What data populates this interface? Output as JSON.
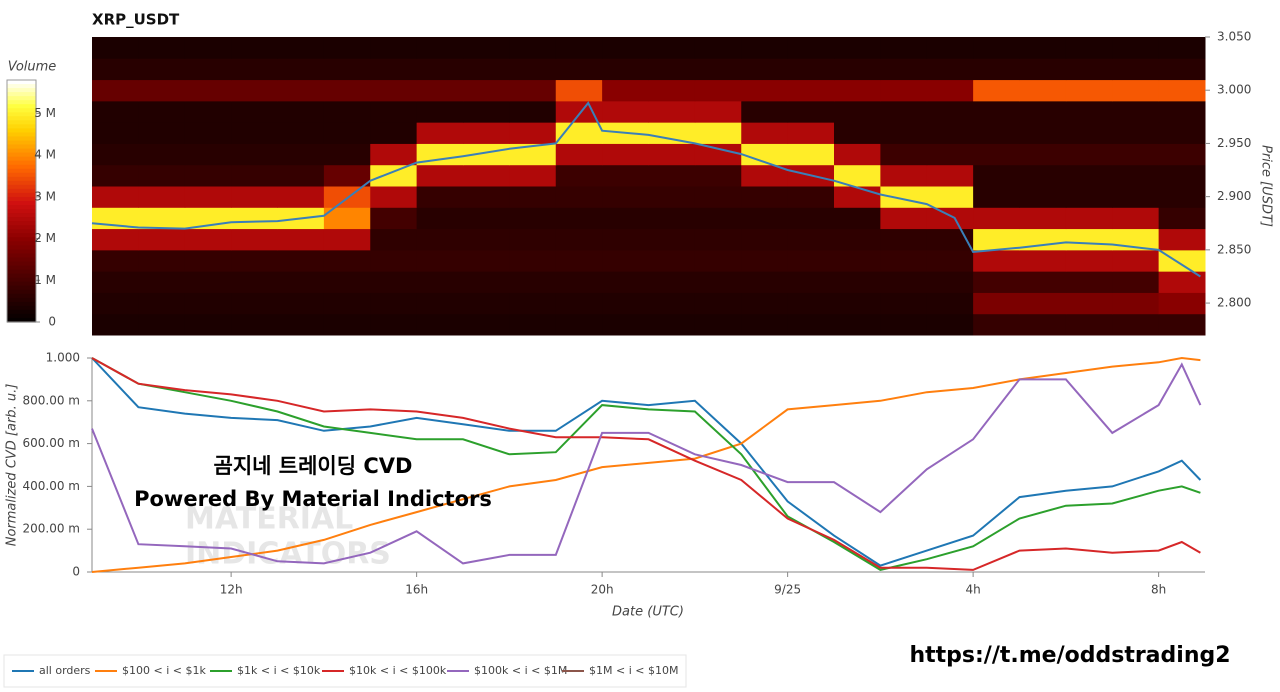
{
  "chart_data": [
    {
      "type": "heatmap",
      "title": "XRP_USDT",
      "ylabel": "Price [USDT]",
      "xlim": [
        9,
        33
      ],
      "ylim": [
        2.77,
        3.05
      ],
      "yticks": [
        {
          "value": 2.8,
          "label": "2.800"
        },
        {
          "value": 2.85,
          "label": "2.850"
        },
        {
          "value": 2.9,
          "label": "2.900"
        },
        {
          "value": 2.95,
          "label": "2.950"
        },
        {
          "value": 3.0,
          "label": "3.000"
        },
        {
          "value": 3.05,
          "label": "3.050"
        }
      ],
      "x_edges": [
        9,
        10,
        11,
        12,
        13,
        14,
        15,
        16,
        17,
        18,
        19,
        20,
        21,
        22,
        23,
        24,
        25,
        26,
        27,
        28,
        29,
        30,
        31,
        32,
        33
      ],
      "price_edges": [
        2.77,
        2.79,
        2.81,
        2.83,
        2.85,
        2.87,
        2.89,
        2.91,
        2.93,
        2.95,
        2.97,
        2.99,
        3.01,
        3.03,
        3.05
      ],
      "z": [
        [
          0.4,
          0.4,
          0.4,
          0.4,
          0.4,
          0.4,
          0.4,
          0.4,
          0.4,
          0.4,
          0.4,
          0.4,
          0.4,
          0.4,
          0.4,
          0.4,
          0.4,
          0.4,
          0.4,
          0.8,
          0.8,
          0.8,
          0.8,
          0.8
        ],
        [
          0.5,
          0.5,
          0.5,
          0.5,
          0.5,
          0.5,
          0.5,
          0.5,
          0.5,
          0.5,
          0.5,
          0.5,
          0.5,
          0.5,
          0.5,
          0.5,
          0.5,
          0.5,
          0.5,
          1.8,
          1.8,
          1.8,
          1.8,
          2.0
        ],
        [
          0.6,
          0.6,
          0.6,
          0.6,
          0.6,
          0.6,
          0.6,
          0.6,
          0.6,
          0.6,
          0.6,
          0.6,
          0.6,
          0.6,
          0.6,
          0.6,
          0.6,
          0.6,
          0.6,
          1.0,
          1.0,
          1.0,
          1.0,
          2.5
        ],
        [
          0.8,
          0.8,
          0.8,
          0.8,
          0.8,
          0.8,
          0.8,
          0.8,
          0.8,
          0.8,
          0.8,
          0.8,
          0.8,
          0.8,
          0.8,
          0.8,
          0.8,
          0.8,
          0.8,
          2.5,
          2.5,
          2.5,
          2.5,
          5.0
        ],
        [
          2.5,
          2.5,
          2.5,
          2.5,
          2.5,
          2.5,
          0.7,
          0.7,
          0.7,
          0.7,
          0.7,
          0.7,
          0.7,
          0.7,
          0.7,
          0.7,
          0.7,
          0.7,
          0.7,
          5.0,
          5.0,
          5.0,
          5.0,
          2.5
        ],
        [
          5.0,
          5.0,
          5.0,
          5.0,
          5.0,
          4.0,
          1.0,
          0.6,
          0.6,
          0.6,
          0.6,
          0.6,
          0.6,
          0.6,
          0.6,
          0.6,
          0.6,
          2.5,
          2.5,
          2.5,
          2.5,
          2.5,
          2.5,
          0.8
        ],
        [
          2.5,
          2.5,
          2.5,
          2.5,
          2.5,
          3.5,
          2.5,
          0.8,
          0.8,
          0.8,
          0.8,
          0.8,
          0.8,
          0.8,
          0.8,
          0.8,
          2.5,
          5.0,
          5.0,
          0.6,
          0.6,
          0.6,
          0.6,
          0.6
        ],
        [
          0.8,
          0.8,
          0.8,
          0.8,
          0.8,
          1.5,
          5.0,
          2.5,
          2.5,
          2.5,
          0.9,
          0.9,
          0.9,
          0.9,
          2.5,
          2.5,
          5.0,
          2.5,
          2.5,
          0.6,
          0.6,
          0.6,
          0.6,
          0.6
        ],
        [
          0.6,
          0.6,
          0.6,
          0.6,
          0.6,
          0.6,
          2.5,
          5.0,
          5.0,
          5.0,
          2.5,
          2.5,
          2.5,
          2.5,
          5.0,
          5.0,
          2.5,
          0.9,
          0.9,
          0.9,
          0.9,
          0.9,
          0.9,
          0.9
        ],
        [
          0.5,
          0.5,
          0.5,
          0.5,
          0.5,
          0.5,
          0.5,
          2.5,
          2.5,
          2.5,
          5.0,
          5.0,
          5.0,
          5.0,
          2.5,
          2.5,
          0.6,
          0.6,
          0.6,
          0.6,
          0.6,
          0.6,
          0.6,
          0.6
        ],
        [
          0.5,
          0.5,
          0.5,
          0.5,
          0.5,
          0.5,
          0.5,
          0.5,
          0.5,
          0.5,
          2.5,
          2.5,
          2.5,
          2.5,
          0.6,
          0.6,
          0.6,
          0.6,
          0.6,
          0.6,
          0.6,
          0.6,
          0.6,
          0.6
        ],
        [
          1.5,
          1.5,
          1.5,
          1.5,
          1.5,
          1.5,
          1.5,
          1.5,
          1.5,
          1.5,
          3.5,
          2.0,
          2.0,
          2.0,
          2.0,
          2.0,
          2.0,
          2.0,
          2.0,
          3.6,
          3.6,
          3.6,
          3.6,
          3.6
        ],
        [
          0.6,
          0.6,
          0.6,
          0.6,
          0.6,
          0.6,
          0.6,
          0.6,
          0.6,
          0.6,
          0.6,
          0.6,
          0.6,
          0.6,
          0.6,
          0.6,
          0.6,
          0.6,
          0.6,
          0.6,
          0.6,
          0.6,
          0.6,
          0.6
        ],
        [
          0.4,
          0.4,
          0.4,
          0.4,
          0.4,
          0.4,
          0.4,
          0.4,
          0.4,
          0.4,
          0.4,
          0.4,
          0.4,
          0.4,
          0.4,
          0.4,
          0.4,
          0.4,
          0.4,
          0.4,
          0.4,
          0.4,
          0.4,
          0.4
        ]
      ],
      "colorbar": {
        "title": "Volume",
        "zlim": [
          0,
          5.8
        ],
        "ticks": [
          0,
          {
            "value": 1,
            "label": "1 M"
          },
          {
            "value": 2,
            "label": "2 M"
          },
          {
            "value": 3,
            "label": "3 M"
          },
          {
            "value": 4,
            "label": "4 M"
          },
          {
            "value": 5,
            "label": "5 M"
          }
        ]
      },
      "price_line": {
        "color": "#3a7fb8",
        "x": [
          9,
          10,
          11,
          12,
          13,
          14,
          15,
          16,
          17,
          18,
          19,
          19.7,
          20,
          21,
          22,
          23,
          24,
          25,
          26,
          27,
          27.6,
          28,
          29,
          30,
          31,
          32,
          32.9
        ],
        "values": [
          2.875,
          2.871,
          2.87,
          2.876,
          2.877,
          2.882,
          2.915,
          2.932,
          2.938,
          2.945,
          2.95,
          2.988,
          2.962,
          2.958,
          2.95,
          2.94,
          2.925,
          2.915,
          2.902,
          2.893,
          2.88,
          2.848,
          2.852,
          2.857,
          2.855,
          2.85,
          2.825
        ]
      }
    },
    {
      "type": "line",
      "ylabel": "Normalized CVD [arb. u.]",
      "xlabel": "Date (UTC)",
      "xlim": [
        9,
        33
      ],
      "ylim": [
        0,
        1
      ],
      "xticks": [
        {
          "value": 12,
          "label": "12h"
        },
        {
          "value": 16,
          "label": "16h"
        },
        {
          "value": 20,
          "label": "20h"
        },
        {
          "value": 24,
          "label": "9/25"
        },
        {
          "value": 28,
          "label": "4h"
        },
        {
          "value": 32,
          "label": "8h"
        }
      ],
      "yticks": [
        0,
        {
          "value": 0.2,
          "label": "200.00 m"
        },
        {
          "value": 0.4,
          "label": "400.00 m"
        },
        {
          "value": 0.6,
          "label": "600.00 m"
        },
        {
          "value": 0.8,
          "label": "800.00 m"
        },
        {
          "value": 1,
          "label": "1.000"
        }
      ],
      "legend": "bottom-left",
      "x": [
        9,
        10,
        11,
        12,
        13,
        14,
        15,
        16,
        17,
        18,
        19,
        20,
        21,
        22,
        23,
        24,
        25,
        26,
        27,
        28,
        29,
        30,
        31,
        32,
        32.5,
        32.9
      ],
      "series": [
        {
          "name": "all orders",
          "color": "#1f77b4",
          "values": [
            1.0,
            0.77,
            0.74,
            0.72,
            0.71,
            0.66,
            0.68,
            0.72,
            0.69,
            0.66,
            0.66,
            0.8,
            0.78,
            0.8,
            0.6,
            0.33,
            0.17,
            0.03,
            0.1,
            0.17,
            0.35,
            0.38,
            0.4,
            0.47,
            0.52,
            0.43
          ]
        },
        {
          "name": "$100 < i < $1k",
          "color": "#ff7f0e",
          "values": [
            0.0,
            0.02,
            0.04,
            0.07,
            0.1,
            0.15,
            0.22,
            0.28,
            0.34,
            0.4,
            0.43,
            0.49,
            0.51,
            0.53,
            0.6,
            0.76,
            0.78,
            0.8,
            0.84,
            0.86,
            0.9,
            0.93,
            0.96,
            0.98,
            1.0,
            0.99
          ]
        },
        {
          "name": "$1k < i < $10k",
          "color": "#2ca02c",
          "values": [
            1.0,
            0.88,
            0.84,
            0.8,
            0.75,
            0.68,
            0.65,
            0.62,
            0.62,
            0.55,
            0.56,
            0.78,
            0.76,
            0.75,
            0.55,
            0.26,
            0.14,
            0.01,
            0.06,
            0.12,
            0.25,
            0.31,
            0.32,
            0.38,
            0.4,
            0.37
          ]
        },
        {
          "name": "$10k < i < $100k",
          "color": "#d62728",
          "values": [
            1.0,
            0.88,
            0.85,
            0.83,
            0.8,
            0.75,
            0.76,
            0.75,
            0.72,
            0.67,
            0.63,
            0.63,
            0.62,
            0.52,
            0.43,
            0.25,
            0.15,
            0.02,
            0.02,
            0.01,
            0.1,
            0.11,
            0.09,
            0.1,
            0.14,
            0.09
          ]
        },
        {
          "name": "$100k < i < $1M",
          "color": "#9467bd",
          "values": [
            0.67,
            0.13,
            0.12,
            0.11,
            0.05,
            0.04,
            0.09,
            0.19,
            0.04,
            0.08,
            0.08,
            0.65,
            0.65,
            0.55,
            0.5,
            0.42,
            0.42,
            0.28,
            0.48,
            0.62,
            0.9,
            0.9,
            0.65,
            0.78,
            0.97,
            0.78
          ]
        },
        {
          "name": "$1M < i < $10M",
          "color": "#8c564b",
          "values": [
            null,
            null,
            null,
            null,
            null,
            null,
            null,
            null,
            null,
            null,
            null,
            null,
            null,
            null,
            null,
            null,
            null,
            null,
            null,
            null,
            null,
            null,
            null,
            null,
            null,
            null
          ]
        }
      ],
      "annotations": [
        "곰지네 트레이딩 CVD",
        "Powered By Material Indictors"
      ],
      "watermark": [
        "MATERIAL",
        "INDICATORS"
      ]
    }
  ],
  "footer_link": "https://t.me/oddstrading2"
}
